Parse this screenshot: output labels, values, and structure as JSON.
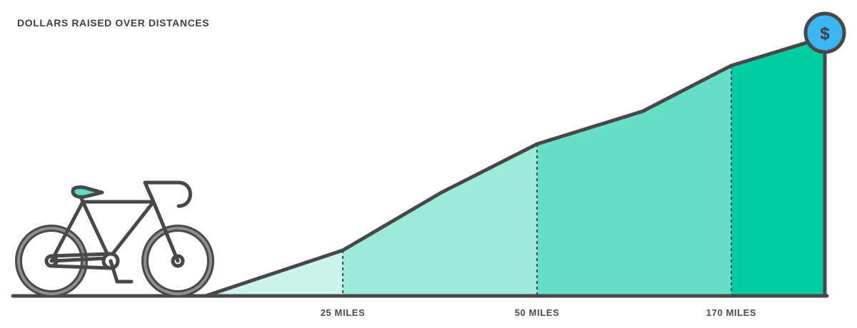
{
  "chart_data": {
    "type": "area",
    "title": "DOLLARS RAISED OVER DISTANCES",
    "xlabel": "",
    "ylabel": "",
    "x_ticks": [
      "25 MILES",
      "50 MILES",
      "170 MILES"
    ],
    "grid": false,
    "legend": "none",
    "segments": [
      {
        "range": [
          "start",
          "25 MILES"
        ],
        "color": "#cdf4ea"
      },
      {
        "range": [
          "25 MILES",
          "50 MILES"
        ],
        "color": "#9deadb"
      },
      {
        "range": [
          "50 MILES",
          "170 MILES"
        ],
        "color": "#67dfc8"
      },
      {
        "range": [
          "170 MILES",
          "end"
        ],
        "color": "#00cca4"
      }
    ],
    "end_marker": {
      "symbol": "$",
      "icon": "dollar-coin-icon",
      "color": "#3db5f0"
    },
    "line_color": "#484848"
  },
  "decor": {
    "icon": "bicycle-icon",
    "accent": "#5fdcc4"
  }
}
